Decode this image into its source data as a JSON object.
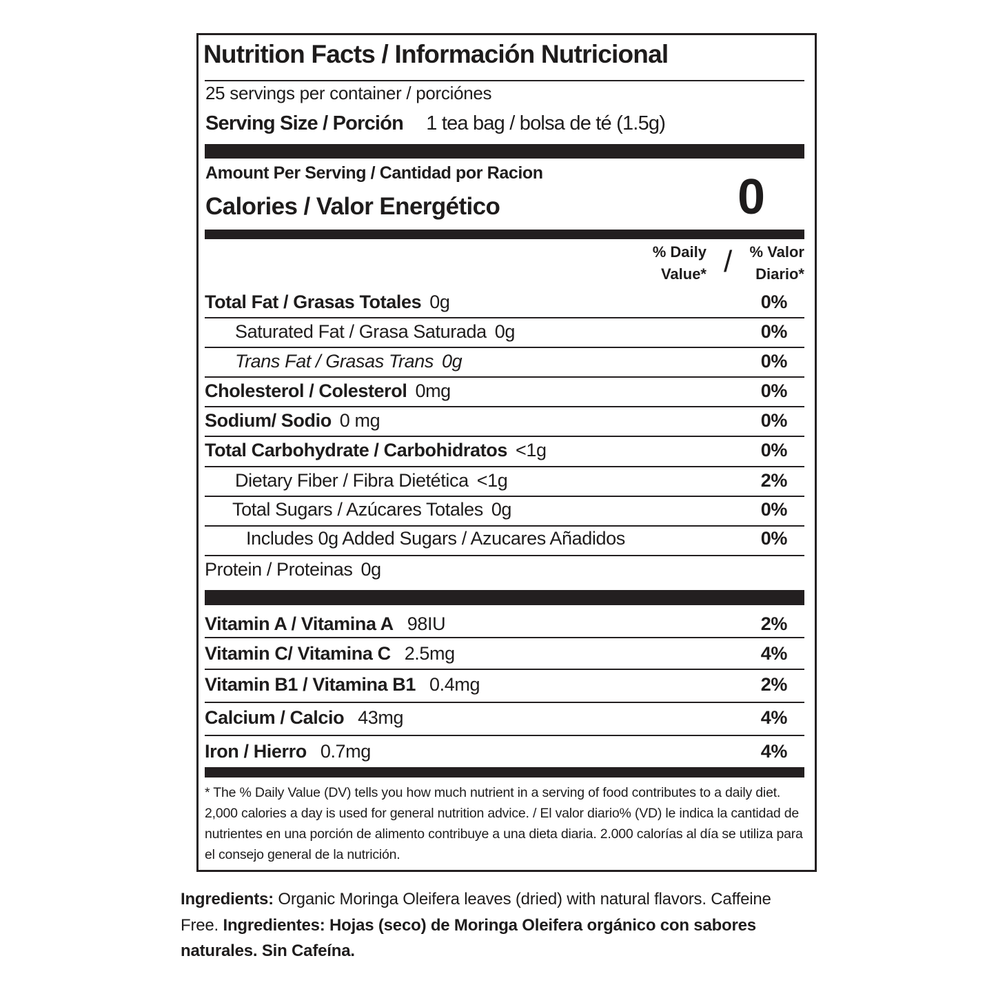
{
  "title": "Nutrition Facts / Información Nutricional",
  "servings": "25 servings per container / porciónes",
  "serving_size_label": "Serving Size / Porción",
  "serving_size_value": "1 tea bag / bolsa de té (1.5g)",
  "amount_per_serving": "Amount Per Serving / Cantidad por Racion",
  "calories_label": "Calories / Valor Energético",
  "calories_value": "0",
  "dv_header": {
    "en_line1": "% Daily",
    "en_line2": "Value*",
    "slash": "/",
    "es_line1": "% Valor",
    "es_line2": "Diario*"
  },
  "nutrients": [
    {
      "label": "Total Fat / Grasas Totales",
      "amount": "0g",
      "dv": "0%",
      "style": "bold"
    },
    {
      "label": "Saturated Fat / Grasa Saturada",
      "amount": "0g",
      "dv": "0%",
      "style": "sub"
    },
    {
      "label": "Trans Fat / Grasas Trans",
      "amount": "0g",
      "dv": "0%",
      "style": "italic"
    },
    {
      "label": "Cholesterol / Colesterol",
      "amount": "0mg",
      "dv": "0%",
      "style": "bold"
    },
    {
      "label": "Sodium/ Sodio",
      "amount": "0 mg",
      "dv": "0%",
      "style": "bold"
    },
    {
      "label": "Total Carbohydrate / Carbohidratos",
      "amount": "<1g",
      "dv": "0%",
      "style": "bold"
    },
    {
      "label": "Dietary Fiber / Fibra Dietética",
      "amount": "<1g",
      "dv": "2%",
      "style": "sub"
    },
    {
      "label": "Total Sugars / Azúcares Totales",
      "amount": "0g",
      "dv": "0%",
      "style": "sub"
    },
    {
      "label": "Includes 0g Added Sugars / Azucares Añadidos",
      "amount": "",
      "dv": "0%",
      "style": "subsub"
    },
    {
      "label": "Protein / Proteinas",
      "amount": "0g",
      "dv": "",
      "style": "normal"
    }
  ],
  "vitamins": [
    {
      "label": "Vitamin A / Vitamina A",
      "amount": "98IU",
      "dv": "2%"
    },
    {
      "label": "Vitamin C/ Vitamina C",
      "amount": "2.5mg",
      "dv": "4%"
    },
    {
      "label": "Vitamin B1 / Vitamina B1",
      "amount": "0.4mg",
      "dv": "2%"
    },
    {
      "label": "Calcium / Calcio",
      "amount": "43mg",
      "dv": "4%"
    },
    {
      "label": "Iron / Hierro",
      "amount": "0.7mg",
      "dv": "4%"
    }
  ],
  "footnote": "* The % Daily Value (DV) tells you how much nutrient in a serving of food contributes to a daily diet. 2,000 calories a day is used for general nutrition advice. / El valor diario% (VD) le indica la cantidad de nutrientes en una porción de alimento contribuye a una dieta diaria. 2.000 calorías al día se utiliza para el consejo general de la nutrición.",
  "ingredients": {
    "label_en": "Ingredients:",
    "text_en": " Organic Moringa Oleifera leaves (dried) with natural flavors. Caffeine Free. ",
    "label_es": "Ingredientes:",
    "text_es": " Hojas (seco) de Moringa Oleifera orgánico con sabores naturales. Sin Cafeína."
  }
}
